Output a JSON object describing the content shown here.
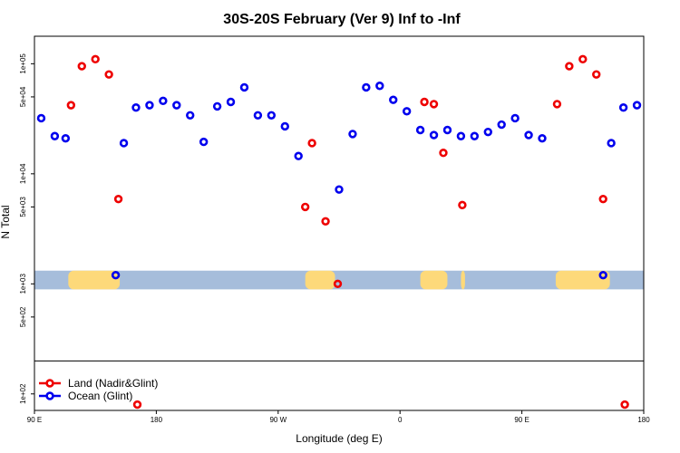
{
  "chart_data": {
    "type": "scatter",
    "title": "30S-20S February (Ver 9)   Inf to -Inf",
    "xlabel": "Longitude (deg E)",
    "ylabel": "N Total",
    "xlim": [
      0,
      450
    ],
    "ylim_log10": [
      1.85,
      5.25
    ],
    "x_ticks": [
      {
        "value": 0,
        "label": "90 E"
      },
      {
        "value": 90,
        "label": "180"
      },
      {
        "value": 180,
        "label": "90 W"
      },
      {
        "value": 270,
        "label": "0"
      },
      {
        "value": 360,
        "label": "90 E"
      },
      {
        "value": 450,
        "label": "180"
      }
    ],
    "y_ticks": [
      {
        "value": 100,
        "label": "1e+02"
      },
      {
        "value": 500,
        "label": "5e+02"
      },
      {
        "value": 1000,
        "label": "1e+03"
      },
      {
        "value": 5000,
        "label": "5e+03"
      },
      {
        "value": 10000,
        "label": "1e+04"
      },
      {
        "value": 50000,
        "label": "5e+04"
      },
      {
        "value": 100000,
        "label": "1e+05"
      }
    ],
    "map_band": {
      "ocean_color": "#a6bddb",
      "land_color": "#fdd97a",
      "y_range_log10": [
        2.95,
        3.12
      ],
      "land_x_ranges": [
        [
          25,
          63
        ],
        [
          200,
          222
        ],
        [
          285,
          305
        ],
        [
          315,
          318
        ],
        [
          385,
          425
        ]
      ]
    },
    "series": [
      {
        "name": "Land (Nadir&Glint)",
        "color": "#ee0000",
        "points": [
          [
            27,
            42000
          ],
          [
            35,
            95000
          ],
          [
            45,
            110000
          ],
          [
            55,
            80000
          ],
          [
            62,
            5900
          ],
          [
            76,
            80
          ],
          [
            200,
            5000
          ],
          [
            205,
            19000
          ],
          [
            215,
            3700
          ],
          [
            224,
            1000
          ],
          [
            288,
            45000
          ],
          [
            295,
            43000
          ],
          [
            302,
            15500
          ],
          [
            316,
            5200
          ],
          [
            386,
            43000
          ],
          [
            395,
            95000
          ],
          [
            405,
            110000
          ],
          [
            415,
            80000
          ],
          [
            420,
            5900
          ],
          [
            436,
            80
          ]
        ]
      },
      {
        "name": "Ocean (Glint)",
        "color": "#0000ee",
        "points": [
          [
            5,
            32000
          ],
          [
            15,
            22000
          ],
          [
            23,
            21000
          ],
          [
            60,
            1200
          ],
          [
            66,
            19000
          ],
          [
            75,
            40000
          ],
          [
            85,
            42000
          ],
          [
            95,
            46000
          ],
          [
            105,
            42000
          ],
          [
            115,
            34000
          ],
          [
            125,
            19500
          ],
          [
            135,
            41000
          ],
          [
            145,
            45000
          ],
          [
            155,
            61000
          ],
          [
            165,
            34000
          ],
          [
            175,
            34000
          ],
          [
            185,
            27000
          ],
          [
            195,
            14500
          ],
          [
            225,
            7200
          ],
          [
            235,
            23000
          ],
          [
            245,
            61000
          ],
          [
            255,
            63000
          ],
          [
            265,
            47000
          ],
          [
            275,
            37000
          ],
          [
            285,
            25000
          ],
          [
            295,
            22500
          ],
          [
            305,
            25000
          ],
          [
            315,
            22000
          ],
          [
            325,
            22000
          ],
          [
            335,
            24000
          ],
          [
            345,
            28000
          ],
          [
            355,
            32000
          ],
          [
            365,
            22500
          ],
          [
            375,
            21000
          ],
          [
            420,
            1200
          ],
          [
            426,
            19000
          ],
          [
            435,
            40000
          ],
          [
            445,
            42000
          ]
        ]
      }
    ],
    "legend": {
      "position": "bottom-left",
      "entries": [
        "Land (Nadir&Glint)",
        "Ocean (Glint)"
      ]
    }
  }
}
